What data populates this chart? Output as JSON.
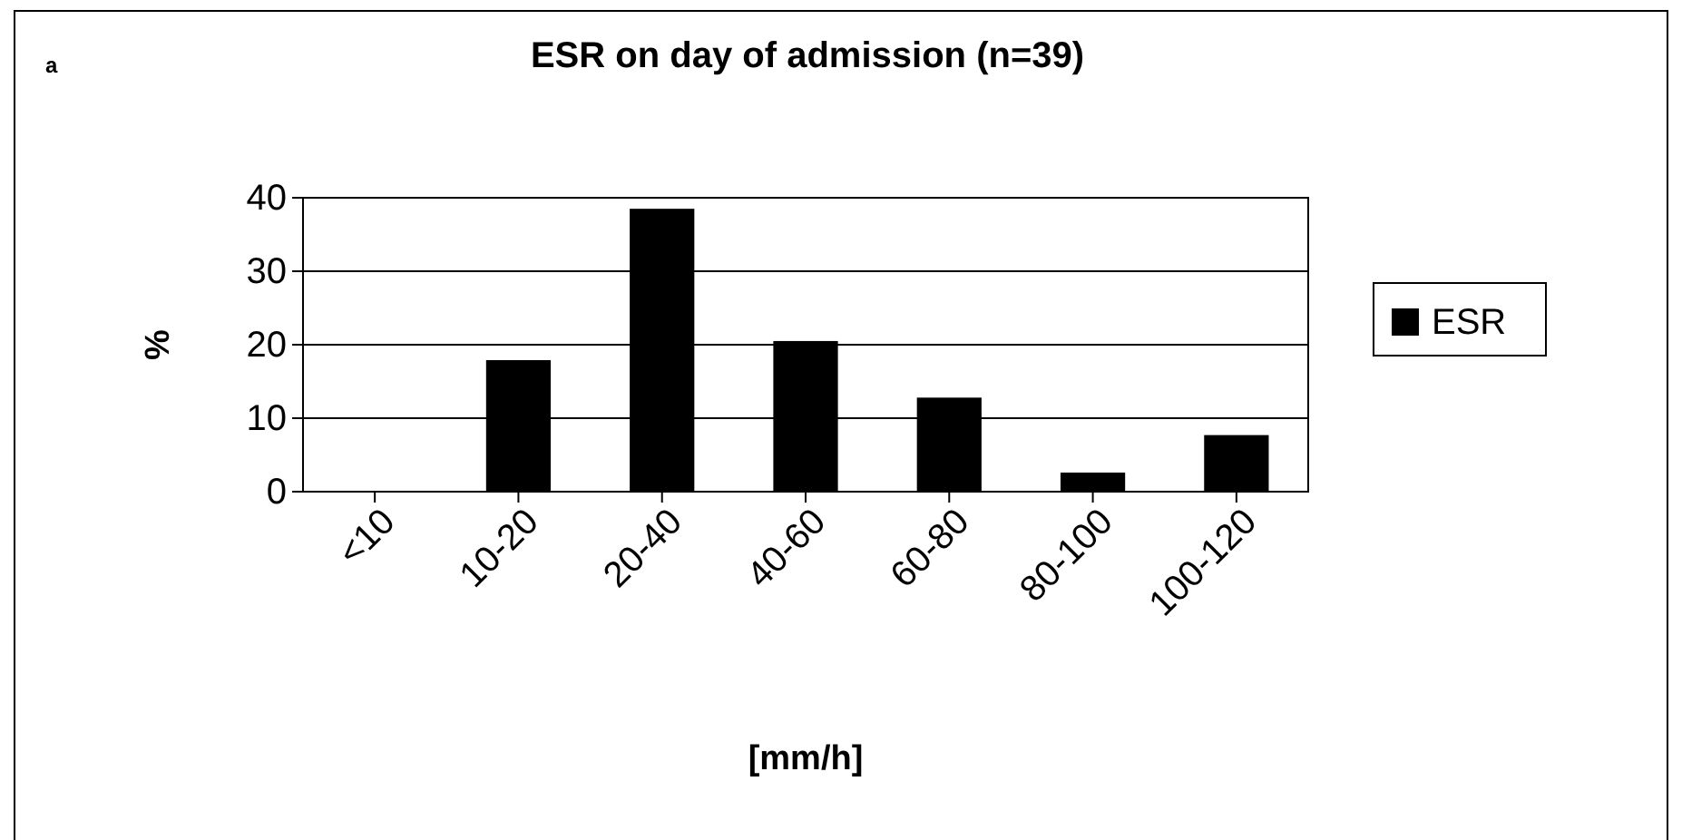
{
  "chart_data": {
    "type": "bar",
    "title": "ESR on day of admission (n=39)",
    "xlabel": "[mm/h]",
    "ylabel": "%",
    "annotations": [
      "a"
    ],
    "categories": [
      "<10",
      "10-20",
      "20-40",
      "40-60",
      "60-80",
      "80-100",
      "100-120"
    ],
    "series": [
      {
        "name": "ESR",
        "color": "#000000",
        "values": [
          0,
          17.9,
          38.5,
          20.5,
          12.8,
          2.6,
          7.7
        ]
      }
    ],
    "ylim": [
      0,
      40
    ],
    "yticks": [
      0,
      10,
      20,
      30,
      40
    ],
    "grid": "y",
    "legend": "right"
  }
}
